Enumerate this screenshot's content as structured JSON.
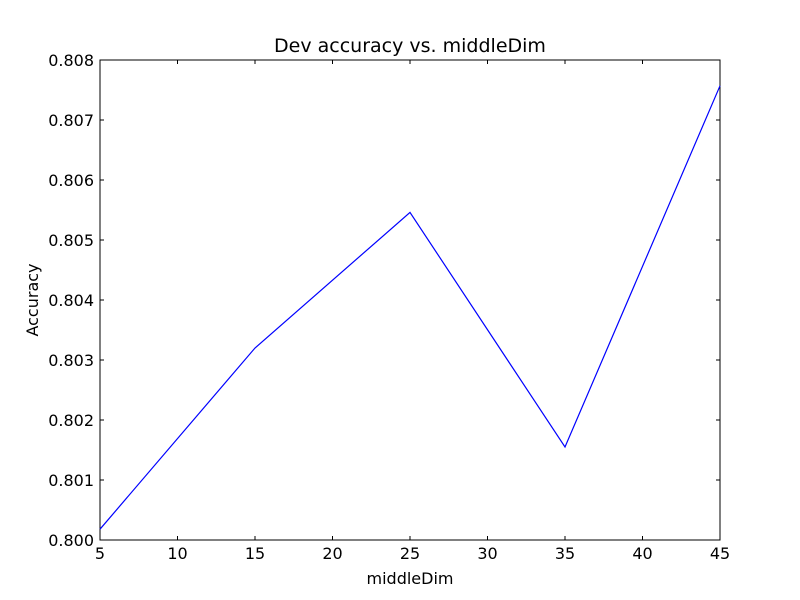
{
  "chart_data": {
    "type": "line",
    "title": "Dev accuracy vs. middleDim",
    "xlabel": "middleDim",
    "ylabel": "Accuracy",
    "xlim": [
      5,
      45
    ],
    "ylim": [
      0.8,
      0.808
    ],
    "x_ticks": [
      5,
      10,
      15,
      20,
      25,
      30,
      35,
      40,
      45
    ],
    "x_tick_labels": [
      "5",
      "10",
      "15",
      "20",
      "25",
      "30",
      "35",
      "40",
      "45"
    ],
    "y_ticks": [
      0.8,
      0.801,
      0.802,
      0.803,
      0.804,
      0.805,
      0.806,
      0.807,
      0.808
    ],
    "y_tick_labels": [
      "0.800",
      "0.801",
      "0.802",
      "0.803",
      "0.804",
      "0.805",
      "0.806",
      "0.807",
      "0.808"
    ],
    "grid": false,
    "legend": "none",
    "series": [
      {
        "x": [
          5,
          15,
          25,
          35,
          45
        ],
        "values": [
          0.80018,
          0.8032,
          0.80546,
          0.80155,
          0.80757
        ],
        "color": "#0000ff"
      }
    ]
  }
}
